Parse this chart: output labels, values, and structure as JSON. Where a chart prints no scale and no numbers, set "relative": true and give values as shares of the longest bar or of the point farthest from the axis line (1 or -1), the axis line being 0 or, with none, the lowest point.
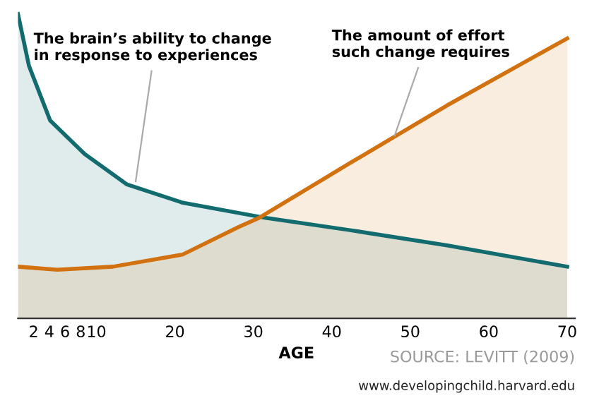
{
  "chart_data": {
    "type": "area",
    "relative": true,
    "xlabel": "AGE",
    "x": [
      0,
      1.4,
      4.1,
      8.5,
      13.9,
      21,
      31.6,
      42.3,
      54.7,
      70
    ],
    "xlim": [
      0,
      71
    ],
    "xticks": [
      2,
      4,
      6,
      8,
      10,
      20,
      30,
      40,
      50,
      60,
      70
    ],
    "series": [
      {
        "name": "The brain’s ability to change in response to experiences",
        "color": "#126b6e",
        "values": [
          1.0,
          0.83,
          0.65,
          0.54,
          0.44,
          0.38,
          0.33,
          0.29,
          0.24,
          0.17
        ]
      },
      {
        "name": "The amount of effort such change requires",
        "color": "#d2710f",
        "x": [
          0,
          5,
          12.1,
          21,
          28.1,
          30.7,
          42.3,
          54.7,
          70
        ],
        "values": [
          0.17,
          0.16,
          0.17,
          0.21,
          0.3,
          0.33,
          0.51,
          0.7,
          0.92
        ]
      }
    ],
    "grid": false,
    "legend": false,
    "annotations": [
      "SOURCE: LEVITT (2009)",
      "www.developingchild.harvard.edu"
    ]
  }
}
